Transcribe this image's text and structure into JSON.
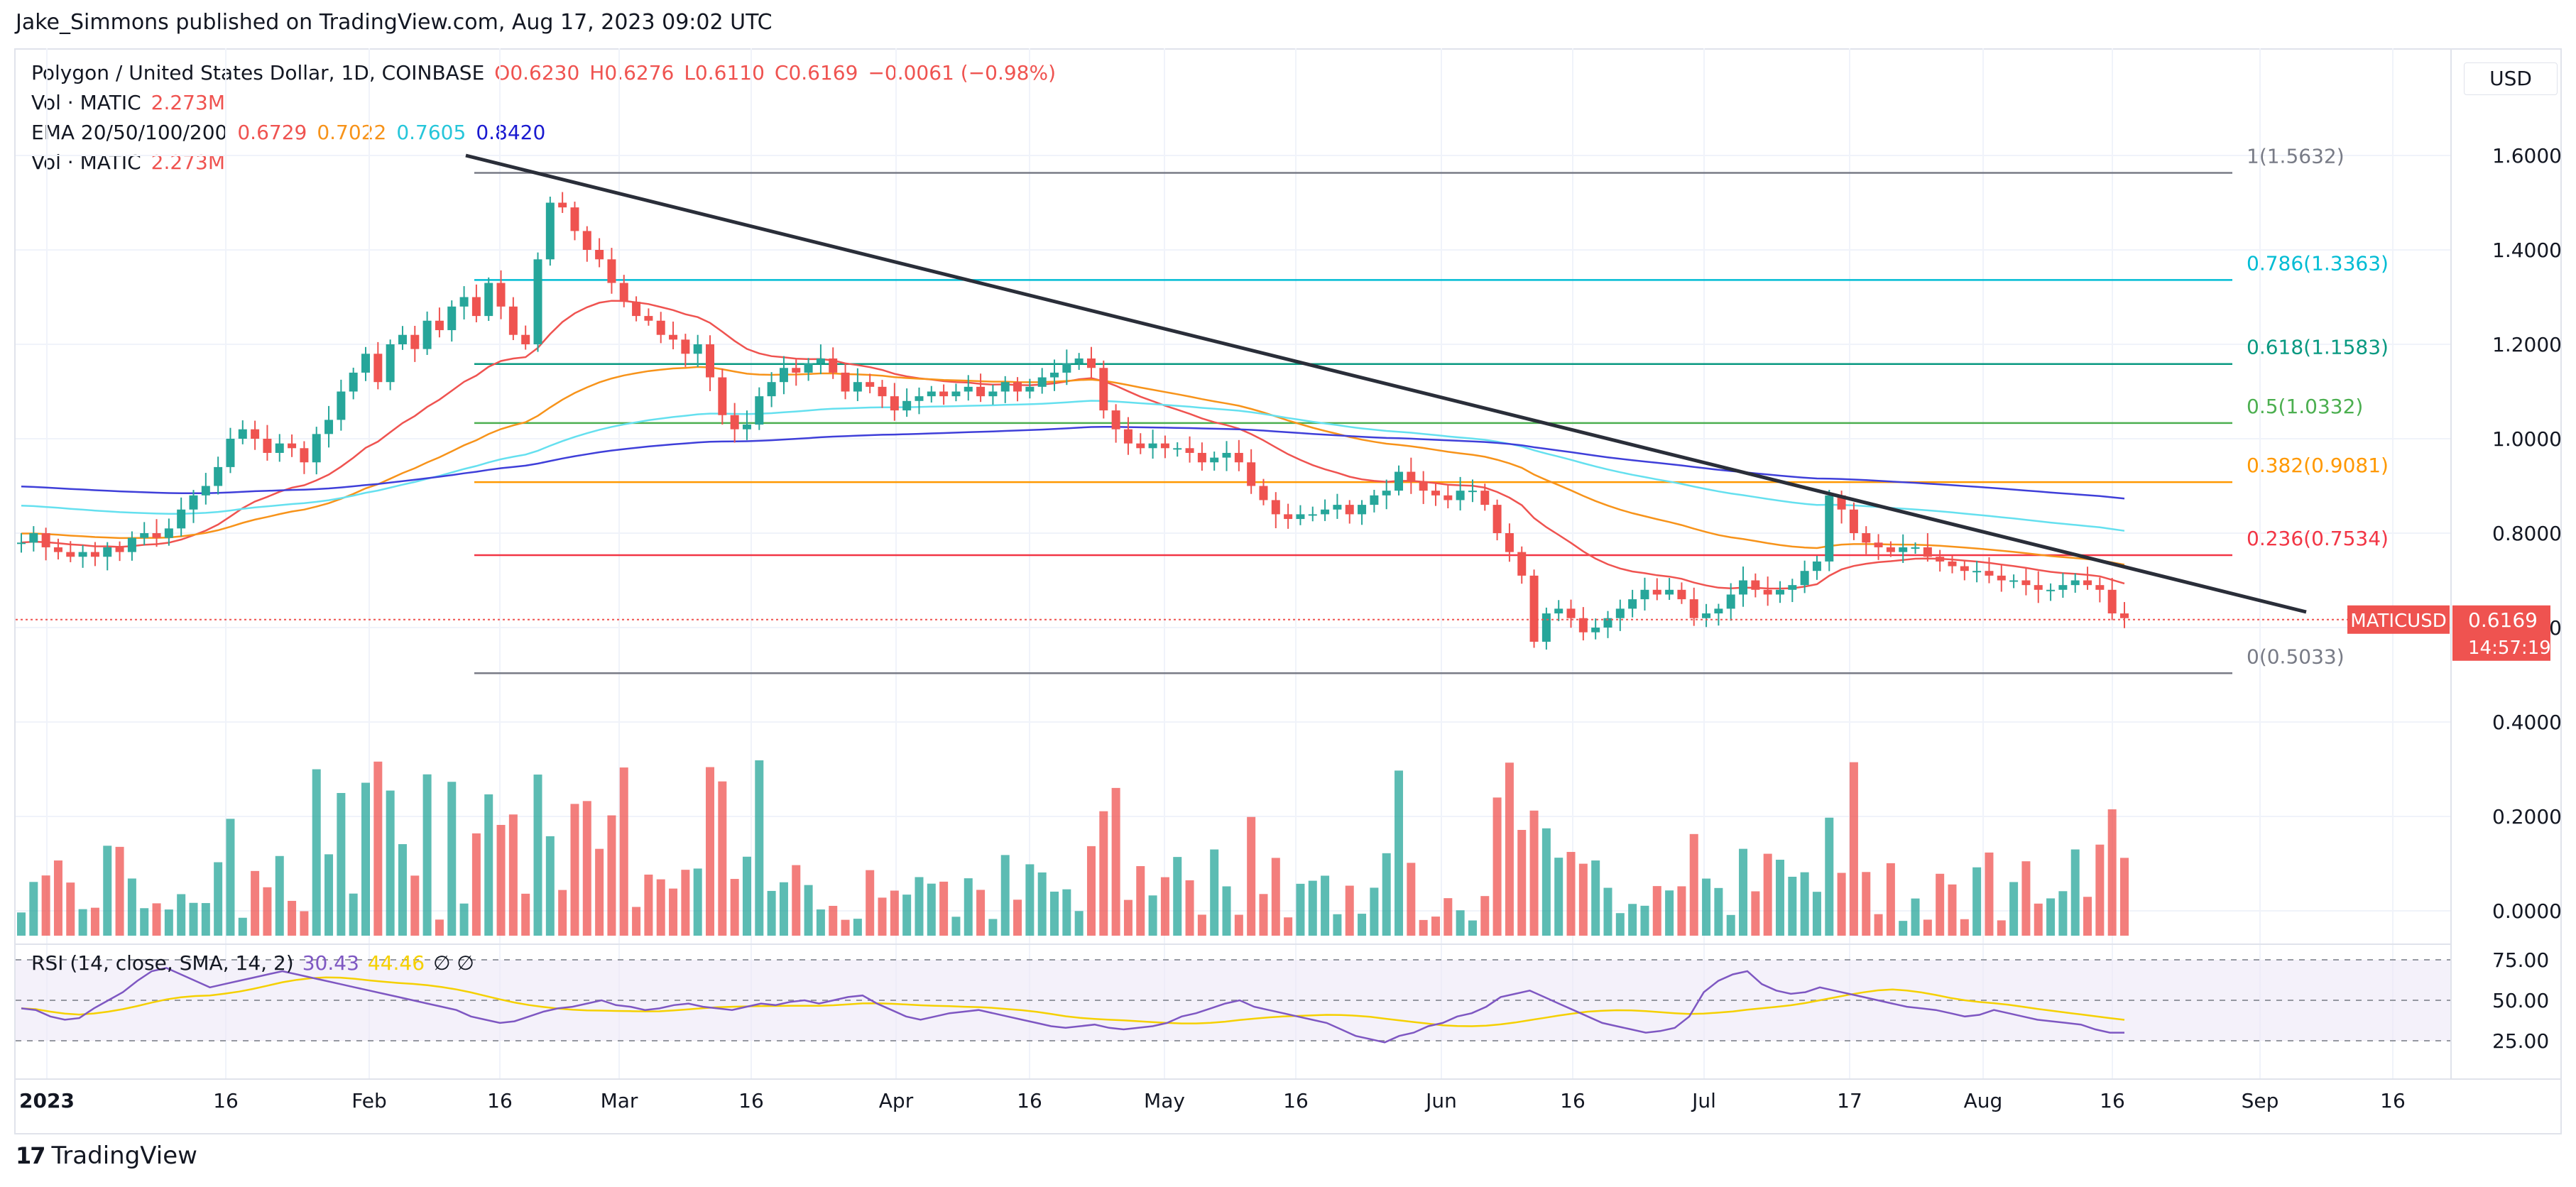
{
  "publisher": "Jake_Simmons published on TradingView.com, Aug 17, 2023 09:02 UTC",
  "header": {
    "symbol": "Polygon / United States Dollar, 1D, COINBASE",
    "open": "O0.6230",
    "high": "H0.6276",
    "low": "L0.6110",
    "close": "C0.6169",
    "change": "−0.0061 (−0.98%)",
    "vol_label": "Vol · MATIC",
    "vol_value": "2.273M",
    "ema_label": "EMA 20/50/100/200",
    "ema20": "0.6729",
    "ema50": "0.7022",
    "ema100": "0.7605",
    "ema200": "0.8420"
  },
  "currency_button": "USD",
  "price_badge": {
    "symbol": "MATICUSD",
    "price": "0.6169",
    "countdown": "14:57:19"
  },
  "rsi": {
    "label": "RSI (14, close, SMA, 14, 2)",
    "value": "30.43",
    "ma_value": "44.46",
    "extra": "∅ ∅"
  },
  "footer": {
    "logo": "17",
    "brand": "TradingView"
  },
  "colors": {
    "up": "#26a69a",
    "down": "#ef5350",
    "ema20": "#ef5350",
    "ema50": "#f7931a",
    "ema100": "#65e0ef",
    "ema200": "#3f3fd9",
    "trend": "#2a2e39",
    "rsi": "#7e57c2",
    "rsi_ma": "#f5d000"
  },
  "chart_data": {
    "type": "candlestick",
    "x_ticks": [
      "2023",
      "16",
      "Feb",
      "16",
      "Mar",
      "16",
      "Apr",
      "16",
      "May",
      "16",
      "Jun",
      "16",
      "Jul",
      "17",
      "Aug",
      "16",
      "Sep",
      "16"
    ],
    "y_ticks": [
      "1.6000",
      "1.4000",
      "1.2000",
      "1.0000",
      "0.8000",
      "0.6000",
      "0.4000",
      "0.2000",
      "0.0000"
    ],
    "rsi_ticks": [
      "75.00",
      "50.00",
      "25.00"
    ],
    "fib_levels": [
      {
        "label": "1(1.5632)",
        "value": 1.5632,
        "color": "#787b86"
      },
      {
        "label": "0.786(1.3363)",
        "value": 1.3363,
        "color": "#00bcd4"
      },
      {
        "label": "0.618(1.1583)",
        "value": 1.1583,
        "color": "#089981"
      },
      {
        "label": "0.5(1.0332)",
        "value": 1.0332,
        "color": "#4caf50"
      },
      {
        "label": "0.382(0.9081)",
        "value": 0.9081,
        "color": "#ff9800"
      },
      {
        "label": "0.236(0.7534)",
        "value": 0.7534,
        "color": "#f23645"
      },
      {
        "label": "0(0.5033)",
        "value": 0.5033,
        "color": "#787b86"
      }
    ],
    "close_series": [
      0.78,
      0.8,
      0.77,
      0.76,
      0.75,
      0.76,
      0.75,
      0.77,
      0.76,
      0.79,
      0.8,
      0.79,
      0.81,
      0.85,
      0.88,
      0.9,
      0.94,
      1.0,
      1.02,
      1.0,
      0.97,
      0.99,
      0.98,
      0.95,
      1.01,
      1.04,
      1.1,
      1.14,
      1.18,
      1.12,
      1.2,
      1.22,
      1.19,
      1.25,
      1.23,
      1.28,
      1.3,
      1.26,
      1.33,
      1.28,
      1.22,
      1.2,
      1.38,
      1.5,
      1.49,
      1.44,
      1.4,
      1.38,
      1.33,
      1.29,
      1.26,
      1.25,
      1.22,
      1.21,
      1.18,
      1.2,
      1.13,
      1.05,
      1.02,
      1.03,
      1.09,
      1.12,
      1.15,
      1.14,
      1.16,
      1.17,
      1.14,
      1.1,
      1.12,
      1.11,
      1.09,
      1.06,
      1.08,
      1.09,
      1.1,
      1.09,
      1.1,
      1.11,
      1.09,
      1.1,
      1.12,
      1.1,
      1.11,
      1.13,
      1.14,
      1.16,
      1.17,
      1.15,
      1.06,
      1.02,
      0.99,
      0.98,
      0.99,
      0.98,
      0.98,
      0.97,
      0.95,
      0.96,
      0.97,
      0.95,
      0.9,
      0.87,
      0.84,
      0.83,
      0.84,
      0.84,
      0.85,
      0.86,
      0.84,
      0.86,
      0.88,
      0.89,
      0.93,
      0.91,
      0.89,
      0.88,
      0.87,
      0.89,
      0.89,
      0.86,
      0.8,
      0.76,
      0.71,
      0.57,
      0.63,
      0.64,
      0.62,
      0.59,
      0.6,
      0.62,
      0.64,
      0.66,
      0.68,
      0.67,
      0.68,
      0.66,
      0.62,
      0.63,
      0.64,
      0.67,
      0.7,
      0.68,
      0.67,
      0.68,
      0.69,
      0.72,
      0.74,
      0.88,
      0.85,
      0.8,
      0.78,
      0.77,
      0.76,
      0.77,
      0.77,
      0.75,
      0.74,
      0.73,
      0.72,
      0.72,
      0.71,
      0.7,
      0.7,
      0.69,
      0.68,
      0.68,
      0.69,
      0.7,
      0.69,
      0.68,
      0.63,
      0.62
    ],
    "volume_note": "volume histogram below price; values in MATIC, y-axis 0.0000–0.4000 (scaled)",
    "rsi_series": [
      45,
      44,
      40,
      38,
      39,
      45,
      50,
      55,
      62,
      68,
      70,
      66,
      62,
      58,
      60,
      62,
      64,
      66,
      68,
      66,
      64,
      62,
      60,
      58,
      56,
      54,
      52,
      50,
      48,
      46,
      44,
      40,
      38,
      36,
      37,
      40,
      43,
      45,
      46,
      48,
      50,
      47,
      46,
      44,
      45,
      47,
      48,
      46,
      45,
      44,
      46,
      48,
      47,
      49,
      50,
      48,
      50,
      52,
      53,
      48,
      44,
      40,
      38,
      40,
      42,
      43,
      44,
      42,
      40,
      38,
      36,
      34,
      33,
      34,
      35,
      33,
      32,
      33,
      34,
      36,
      40,
      42,
      45,
      48,
      50,
      46,
      44,
      42,
      40,
      38,
      36,
      32,
      28,
      26,
      24,
      28,
      30,
      34,
      36,
      40,
      42,
      46,
      52,
      54,
      56,
      52,
      48,
      44,
      40,
      36,
      34,
      32,
      30,
      31,
      33,
      40,
      55,
      62,
      66,
      68,
      60,
      56,
      54,
      55,
      58,
      56,
      54,
      52,
      50,
      48,
      46,
      45,
      44,
      42,
      40,
      41,
      44,
      42,
      40,
      38,
      37,
      36,
      35,
      32,
      30,
      30
    ],
    "ylim": [
      -0.05,
      1.68
    ]
  }
}
